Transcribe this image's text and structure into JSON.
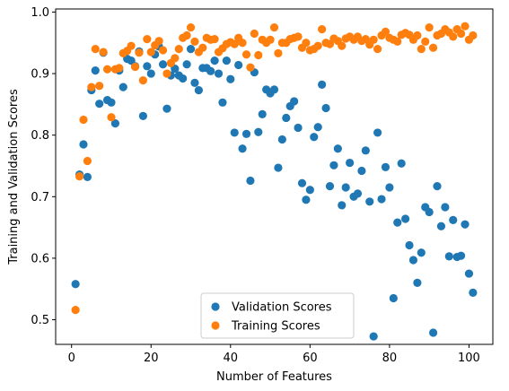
{
  "chart_data": {
    "type": "scatter",
    "xlabel": "Number of Features",
    "ylabel": "Training and Validation Scores",
    "xlim": [
      -4,
      106
    ],
    "ylim": [
      0.46,
      1.005
    ],
    "xticks": [
      0,
      20,
      40,
      60,
      80,
      100
    ],
    "yticks": [
      0.5,
      0.6,
      0.7,
      0.8,
      0.9,
      1.0
    ],
    "xtick_labels": [
      "0",
      "20",
      "40",
      "60",
      "80",
      "100"
    ],
    "ytick_labels": [
      "0.5",
      "0.6",
      "0.7",
      "0.8",
      "0.9",
      "1.0"
    ],
    "grid": false,
    "legend_position": "lower-center",
    "legend": [
      "Validation Scores",
      "Training Scores"
    ],
    "x": [
      1,
      2,
      3,
      4,
      5,
      6,
      7,
      8,
      9,
      10,
      11,
      12,
      13,
      14,
      15,
      16,
      17,
      18,
      19,
      20,
      21,
      22,
      23,
      24,
      25,
      26,
      27,
      28,
      29,
      30,
      31,
      32,
      33,
      34,
      35,
      36,
      37,
      38,
      39,
      40,
      41,
      42,
      43,
      44,
      45,
      46,
      47,
      48,
      49,
      50,
      51,
      52,
      53,
      54,
      55,
      56,
      57,
      58,
      59,
      60,
      61,
      62,
      63,
      64,
      65,
      66,
      67,
      68,
      69,
      70,
      71,
      72,
      73,
      74,
      75,
      76,
      77,
      78,
      79,
      80,
      81,
      82,
      83,
      84,
      85,
      86,
      87,
      88,
      89,
      90,
      91,
      92,
      93,
      94,
      95,
      96,
      97,
      98,
      99,
      100,
      101
    ],
    "series": [
      {
        "name": "Validation Scores",
        "color": "#1f77b4",
        "values": [
          0.558,
          0.736,
          0.785,
          0.732,
          0.873,
          0.905,
          0.851,
          0.934,
          0.857,
          0.853,
          0.819,
          0.905,
          0.878,
          0.924,
          0.921,
          0.912,
          0.936,
          0.831,
          0.912,
          0.9,
          0.931,
          0.944,
          0.915,
          0.843,
          0.897,
          0.908,
          0.897,
          0.892,
          0.915,
          0.94,
          0.885,
          0.873,
          0.909,
          0.909,
          0.904,
          0.921,
          0.9,
          0.853,
          0.921,
          0.891,
          0.804,
          0.914,
          0.778,
          0.802,
          0.726,
          0.902,
          0.805,
          0.834,
          0.874,
          0.868,
          0.874,
          0.747,
          0.793,
          0.828,
          0.847,
          0.855,
          0.812,
          0.722,
          0.695,
          0.711,
          0.797,
          0.813,
          0.882,
          0.844,
          0.717,
          0.751,
          0.778,
          0.686,
          0.715,
          0.755,
          0.7,
          0.705,
          0.742,
          0.775,
          0.692,
          0.473,
          0.804,
          0.696,
          0.748,
          0.715,
          0.535,
          0.658,
          0.754,
          0.664,
          0.621,
          0.597,
          0.56,
          0.609,
          0.683,
          0.675,
          0.479,
          0.717,
          0.652,
          0.683,
          0.603,
          0.662,
          0.602,
          0.604,
          0.655,
          0.575,
          0.544
        ]
      },
      {
        "name": "Training Scores",
        "color": "#ff7f0e",
        "values": [
          0.516,
          0.733,
          0.825,
          0.758,
          0.878,
          0.94,
          0.88,
          0.935,
          0.907,
          0.829,
          0.907,
          0.909,
          0.933,
          0.937,
          0.945,
          0.911,
          0.934,
          0.889,
          0.956,
          0.935,
          0.946,
          0.953,
          0.938,
          0.9,
          0.917,
          0.925,
          0.94,
          0.958,
          0.962,
          0.975,
          0.952,
          0.935,
          0.942,
          0.958,
          0.955,
          0.956,
          0.935,
          0.941,
          0.948,
          0.951,
          0.948,
          0.958,
          0.95,
          0.931,
          0.91,
          0.965,
          0.93,
          0.955,
          0.95,
          0.955,
          0.975,
          0.933,
          0.95,
          0.95,
          0.956,
          0.958,
          0.96,
          0.942,
          0.95,
          0.938,
          0.94,
          0.945,
          0.972,
          0.95,
          0.948,
          0.957,
          0.953,
          0.945,
          0.957,
          0.96,
          0.955,
          0.96,
          0.953,
          0.956,
          0.947,
          0.955,
          0.94,
          0.962,
          0.968,
          0.958,
          0.955,
          0.952,
          0.963,
          0.966,
          0.963,
          0.955,
          0.962,
          0.94,
          0.952,
          0.975,
          0.942,
          0.962,
          0.965,
          0.972,
          0.967,
          0.96,
          0.972,
          0.965,
          0.977,
          0.955,
          0.962
        ]
      }
    ]
  }
}
